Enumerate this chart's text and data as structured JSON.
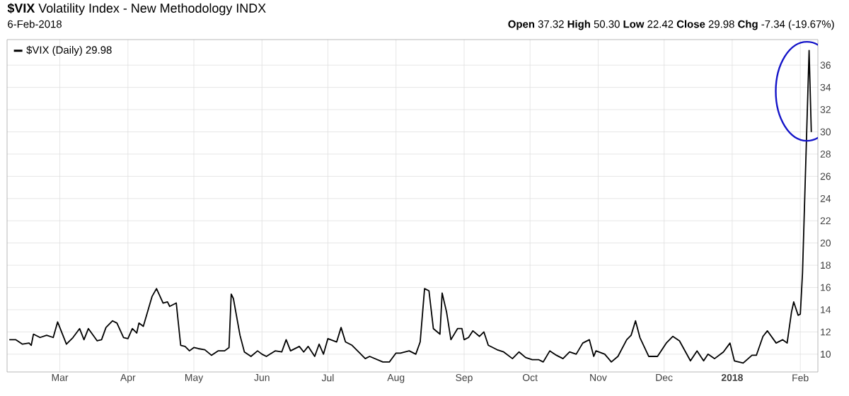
{
  "chart_data": {
    "type": "line",
    "title": "**$VIX** Volatility Index - New Methodology INDX",
    "subtitle": "6-Feb-2018",
    "annotations": [
      "**Open** 37.32  **High** 50.30  **Low** 22.42  **Close** 29.98  **Chg** -7.34 (-19.67%)"
    ],
    "x": [
      "2017-02-06",
      "2017-02-09",
      "2017-02-12",
      "2017-02-15",
      "2017-02-16",
      "2017-02-17",
      "2017-02-20",
      "2017-02-23",
      "2017-02-26",
      "2017-02-28",
      "2017-03-01",
      "2017-03-04",
      "2017-03-07",
      "2017-03-10",
      "2017-03-12",
      "2017-03-14",
      "2017-03-18",
      "2017-03-20",
      "2017-03-22",
      "2017-03-25",
      "2017-03-27",
      "2017-03-30",
      "2017-04-01",
      "2017-04-03",
      "2017-04-05",
      "2017-04-06",
      "2017-04-08",
      "2017-04-12",
      "2017-04-14",
      "2017-04-17",
      "2017-04-19",
      "2017-04-20",
      "2017-04-23",
      "2017-04-25",
      "2017-04-27",
      "2017-04-29",
      "2017-05-01",
      "2017-05-03",
      "2017-05-06",
      "2017-05-09",
      "2017-05-12",
      "2017-05-15",
      "2017-05-17",
      "2017-05-18",
      "2017-05-19",
      "2017-05-22",
      "2017-05-24",
      "2017-05-27",
      "2017-05-30",
      "2017-06-01",
      "2017-06-03",
      "2017-06-07",
      "2017-06-10",
      "2017-06-12",
      "2017-06-14",
      "2017-06-18",
      "2017-06-20",
      "2017-06-22",
      "2017-06-25",
      "2017-06-27",
      "2017-06-29",
      "2017-07-01",
      "2017-07-05",
      "2017-07-07",
      "2017-07-09",
      "2017-07-12",
      "2017-07-18",
      "2017-07-20",
      "2017-07-26",
      "2017-07-29",
      "2017-08-01",
      "2017-08-03",
      "2017-08-07",
      "2017-08-10",
      "2017-08-12",
      "2017-08-14",
      "2017-08-16",
      "2017-08-18",
      "2017-08-21",
      "2017-08-22",
      "2017-08-24",
      "2017-08-26",
      "2017-08-29",
      "2017-08-31",
      "2017-09-01",
      "2017-09-03",
      "2017-09-05",
      "2017-09-08",
      "2017-09-10",
      "2017-09-12",
      "2017-09-16",
      "2017-09-19",
      "2017-09-23",
      "2017-09-26",
      "2017-09-29",
      "2017-10-02",
      "2017-10-05",
      "2017-10-07",
      "2017-10-10",
      "2017-10-13",
      "2017-10-16",
      "2017-10-19",
      "2017-10-22",
      "2017-10-25",
      "2017-10-28",
      "2017-10-30",
      "2017-10-31",
      "2017-11-04",
      "2017-11-07",
      "2017-11-10",
      "2017-11-14",
      "2017-11-16",
      "2017-11-18",
      "2017-11-20",
      "2017-11-24",
      "2017-11-28",
      "2017-12-02",
      "2017-12-05",
      "2017-12-08",
      "2017-12-13",
      "2017-12-16",
      "2017-12-19",
      "2017-12-21",
      "2017-12-24",
      "2017-12-28",
      "2017-12-31",
      "2018-01-02",
      "2018-01-06",
      "2018-01-10",
      "2018-01-12",
      "2018-01-15",
      "2018-01-17",
      "2018-01-21",
      "2018-01-24",
      "2018-01-26",
      "2018-01-28",
      "2018-01-29",
      "2018-01-31",
      "2018-02-01",
      "2018-02-02",
      "2018-02-05",
      "2018-02-06"
    ],
    "series": [
      {
        "name": "$VIX (Daily) 29.98",
        "color": "#000000",
        "values": [
          11.3,
          11.3,
          10.9,
          11.0,
          10.8,
          11.8,
          11.5,
          11.7,
          11.5,
          12.9,
          12.4,
          10.9,
          11.5,
          12.3,
          11.3,
          12.3,
          11.2,
          11.3,
          12.4,
          13.0,
          12.8,
          11.5,
          11.4,
          12.3,
          11.9,
          12.8,
          12.5,
          15.2,
          15.9,
          14.6,
          14.7,
          14.3,
          14.6,
          10.8,
          10.7,
          10.3,
          10.6,
          10.5,
          10.4,
          9.9,
          10.3,
          10.3,
          10.6,
          15.4,
          15.0,
          11.7,
          10.2,
          9.8,
          10.3,
          10.0,
          9.8,
          10.3,
          10.2,
          11.3,
          10.3,
          10.7,
          10.2,
          10.7,
          9.8,
          10.9,
          10.0,
          11.4,
          11.1,
          12.4,
          11.1,
          10.8,
          9.6,
          9.8,
          9.3,
          9.3,
          10.1,
          10.1,
          10.3,
          10.0,
          11.1,
          15.9,
          15.7,
          12.3,
          11.8,
          15.5,
          13.8,
          11.3,
          12.3,
          12.3,
          11.3,
          11.5,
          12.1,
          11.6,
          12.0,
          10.8,
          10.4,
          10.2,
          9.6,
          10.2,
          9.7,
          9.5,
          9.5,
          9.3,
          10.3,
          9.9,
          9.6,
          10.2,
          10.0,
          11.0,
          11.3,
          9.8,
          10.3,
          10.0,
          9.3,
          9.8,
          11.3,
          11.7,
          13.0,
          11.5,
          9.8,
          9.8,
          11.0,
          11.6,
          11.2,
          9.4,
          10.3,
          9.4,
          10.0,
          9.6,
          10.2,
          11.0,
          9.4,
          9.2,
          9.9,
          9.9,
          11.6,
          12.1,
          11.0,
          11.3,
          11.0,
          13.8,
          14.7,
          13.5,
          13.6,
          17.3,
          37.32,
          29.98
        ]
      }
    ],
    "xlim": [
      "2017-02-05",
      "2018-02-09"
    ],
    "ylim": [
      8.4,
      38.3
    ],
    "xticks": [
      {
        "value": "2017-03-01",
        "label": "Mar"
      },
      {
        "value": "2017-04-01",
        "label": "Apr"
      },
      {
        "value": "2017-05-01",
        "label": "May"
      },
      {
        "value": "2017-06-01",
        "label": "Jun"
      },
      {
        "value": "2017-07-01",
        "label": "Jul"
      },
      {
        "value": "2017-08-01",
        "label": "Aug"
      },
      {
        "value": "2017-09-01",
        "label": "Sep"
      },
      {
        "value": "2017-10-01",
        "label": "Oct"
      },
      {
        "value": "2017-11-01",
        "label": "Nov"
      },
      {
        "value": "2017-12-01",
        "label": "Dec"
      },
      {
        "value": "2018-01-01",
        "label": "**2018**"
      },
      {
        "value": "2018-02-01",
        "label": "Feb"
      }
    ],
    "yticks": [
      10,
      12,
      14,
      16,
      18,
      20,
      22,
      24,
      26,
      28,
      30,
      32,
      34,
      36
    ],
    "grid": true,
    "legend": "top left",
    "marker": "none",
    "line_style": "solid"
  }
}
